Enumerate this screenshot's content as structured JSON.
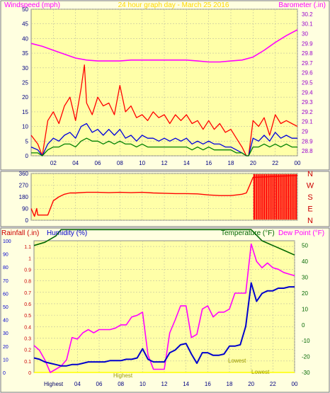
{
  "chart_data": [
    {
      "type": "line",
      "title": "24 hour graph day - March 25 2016",
      "ylabel_left": "Windspeed (mph)",
      "ylabel_right": "Barometer (.in)",
      "x_ticks": [
        "02",
        "04",
        "06",
        "08",
        "10",
        "12",
        "14",
        "16",
        "18",
        "20",
        "22",
        "00"
      ],
      "y_ticks_left": [
        "0",
        "5",
        "10",
        "15",
        "20",
        "25",
        "30",
        "35",
        "40",
        "45",
        "50"
      ],
      "y_ticks_right": [
        "28.8",
        "28.9",
        "29",
        "29.1",
        "29.2",
        "29.3",
        "29.4",
        "29.5",
        "29.6",
        "29.7",
        "29.8",
        "29.9",
        "30",
        "30.1",
        "30.2"
      ],
      "ylim_left": [
        0,
        50
      ],
      "ylim_right": [
        28.75,
        30.25
      ],
      "xlim_hours": [
        0,
        24
      ],
      "grid": true,
      "colors": {
        "gust": "#ff0000",
        "wind_speed": "#0000dd",
        "wind_avg": "#008000",
        "barometer": "#ff00ff"
      },
      "series": [
        {
          "role": "gust",
          "x": [
            0,
            0.6,
            1.0,
            1.5,
            2.0,
            2.5,
            3.0,
            3.5,
            4.0,
            4.5,
            4.8,
            5.0,
            5.5,
            6.0,
            6.5,
            7.0,
            7.5,
            8.0,
            8.5,
            9.0,
            9.5,
            10.0,
            10.5,
            11.0,
            11.5,
            12.0,
            12.5,
            13.0,
            13.5,
            14.0,
            14.5,
            15.0,
            15.5,
            16.0,
            16.5,
            17.0,
            17.5,
            18.0,
            18.5,
            19.0,
            19.4,
            19.6,
            20.0,
            20.5,
            21.0,
            21.5,
            22.0,
            22.5,
            23.0,
            23.5,
            24.0
          ],
          "y": [
            7,
            4,
            0,
            12,
            15,
            11,
            17,
            20,
            12,
            23,
            31,
            18,
            14,
            20,
            17,
            18,
            14,
            24,
            15,
            17,
            13,
            14,
            12,
            15,
            13,
            14,
            11,
            14,
            12,
            14,
            11,
            12,
            9,
            12,
            9,
            11,
            8,
            9,
            6,
            3,
            0,
            0,
            12,
            10,
            13,
            7,
            14,
            11,
            12,
            11,
            10
          ]
        },
        {
          "role": "wind_speed",
          "x": [
            0,
            0.6,
            1.0,
            1.5,
            2.0,
            2.5,
            3.0,
            3.5,
            4.0,
            4.5,
            5.0,
            5.5,
            6.0,
            6.5,
            7.0,
            7.5,
            8.0,
            8.5,
            9.0,
            9.5,
            10.0,
            10.5,
            11.0,
            11.5,
            12.0,
            12.5,
            13.0,
            13.5,
            14.0,
            14.5,
            15.0,
            15.5,
            16.0,
            16.5,
            17.0,
            17.5,
            18.0,
            18.5,
            19.0,
            19.4,
            19.6,
            20.0,
            20.5,
            21.0,
            21.5,
            22.0,
            22.5,
            23.0,
            23.5,
            24.0
          ],
          "y": [
            3,
            2,
            0,
            4,
            6,
            5,
            7,
            8,
            6,
            10,
            11,
            8,
            9,
            7,
            9,
            7,
            9,
            6,
            7,
            5,
            7,
            6,
            6,
            5,
            6,
            5,
            6,
            5,
            6,
            4,
            5,
            4,
            5,
            4,
            4,
            3,
            3,
            2,
            1,
            0,
            0,
            6,
            5,
            7,
            5,
            8,
            6,
            7,
            6,
            6
          ]
        },
        {
          "role": "wind_avg",
          "x": [
            0,
            0.6,
            1.0,
            1.5,
            2.0,
            2.5,
            3.0,
            3.5,
            4.0,
            4.5,
            5.0,
            5.5,
            6.0,
            6.5,
            7.0,
            7.5,
            8.0,
            8.5,
            9.0,
            9.5,
            10.0,
            10.5,
            11.0,
            11.5,
            12.0,
            12.5,
            13.0,
            13.5,
            14.0,
            14.5,
            15.0,
            15.5,
            16.0,
            16.5,
            17.0,
            17.5,
            18.0,
            18.5,
            19.0,
            19.4,
            19.6,
            20.0,
            20.5,
            21.0,
            21.5,
            22.0,
            22.5,
            23.0,
            23.5,
            24.0
          ],
          "y": [
            1,
            1,
            0,
            2,
            3,
            3,
            4,
            4,
            3,
            5,
            6,
            5,
            5,
            4,
            5,
            4,
            5,
            4,
            4,
            3,
            4,
            3,
            3,
            3,
            3,
            3,
            3,
            3,
            3,
            2,
            3,
            2,
            3,
            2,
            2,
            2,
            2,
            1,
            1,
            0,
            0,
            3,
            3,
            4,
            3,
            4,
            3,
            4,
            3,
            3
          ]
        },
        {
          "role": "barometer",
          "x": [
            0,
            1,
            2,
            3,
            4,
            5,
            6,
            7,
            8,
            9,
            10,
            11,
            12,
            13,
            14,
            15,
            16,
            17,
            18,
            19,
            20,
            21,
            22,
            23,
            24
          ],
          "y": [
            29.9,
            29.87,
            29.83,
            29.79,
            29.75,
            29.73,
            29.72,
            29.72,
            29.72,
            29.73,
            29.73,
            29.73,
            29.73,
            29.73,
            29.73,
            29.72,
            29.71,
            29.71,
            29.72,
            29.73,
            29.76,
            29.83,
            29.91,
            29.98,
            30.04
          ]
        }
      ]
    },
    {
      "type": "line",
      "ylabel_right": "N W S E N",
      "right_labels": [
        "N",
        "W",
        "S",
        "E",
        "N"
      ],
      "y_ticks_left": [
        "0",
        "90",
        "180",
        "270",
        "360"
      ],
      "ylim": [
        0,
        360
      ],
      "xlim_hours": [
        0,
        24
      ],
      "grid": true,
      "colors": {
        "direction": "#ff0000"
      },
      "series": [
        {
          "role": "wind_direction",
          "x": [
            0,
            0.3,
            0.5,
            0.6,
            1.5,
            2.0,
            2.5,
            3.0,
            3.5,
            4.0,
            5.0,
            6.0,
            7.0,
            8.0,
            9.0,
            10.0,
            11.0,
            12.0,
            13.0,
            14.0,
            15.0,
            16.0,
            17.0,
            18.0,
            18.5,
            19.0,
            19.4,
            19.6,
            20.0,
            24.0
          ],
          "y": [
            90,
            30,
            90,
            40,
            40,
            150,
            180,
            200,
            210,
            210,
            215,
            215,
            212,
            215,
            212,
            215,
            210,
            208,
            205,
            205,
            203,
            195,
            190,
            190,
            195,
            200,
            210,
            250,
            330,
            345
          ]
        }
      ]
    },
    {
      "type": "line",
      "ylabel_left_1": "Rainfall (.in)",
      "ylabel_left_2": "Humidity (%)",
      "ylabel_right_1": "Temperature (°F)",
      "ylabel_right_2": "Dew Point (°F)",
      "y_ticks_rain": [
        "0",
        "0.1",
        "0.2",
        "0.3",
        "0.4",
        "0.5",
        "0.6",
        "0.7",
        "0.8",
        "0.9",
        "1",
        "1.1"
      ],
      "y_ticks_humidity": [
        "0",
        "10",
        "20",
        "30",
        "40",
        "50",
        "60",
        "70",
        "80",
        "90",
        "100"
      ],
      "y_ticks_temp": [
        "-30",
        "-20",
        "-10",
        "0",
        "10",
        "20",
        "30",
        "40",
        "50"
      ],
      "x_ticks": [
        "04",
        "06",
        "08",
        "10",
        "12",
        "14",
        "16",
        "18",
        "20",
        "22",
        "00"
      ],
      "ylim_humidity": [
        0,
        100
      ],
      "ylim_temp": [
        -30,
        53
      ],
      "xlim_hours": [
        0,
        24
      ],
      "grid": true,
      "annotations": [
        "Highest",
        "Highest",
        "Lowest",
        "Lowest"
      ],
      "colors": {
        "temperature": "#006600",
        "dew_point": "#ff00ff",
        "humidity": "#0000cc",
        "rain": "#ffff00"
      },
      "series": [
        {
          "role": "temperature",
          "x": [
            0,
            1,
            2,
            2.5,
            20,
            21,
            22,
            23,
            24
          ],
          "y": [
            50,
            52,
            56,
            60,
            60,
            53,
            50,
            47,
            44
          ]
        },
        {
          "role": "dew_point",
          "x": [
            0,
            0.5,
            1.0,
            1.5,
            2.0,
            2.5,
            3.0,
            3.5,
            4.0,
            4.5,
            5.0,
            5.5,
            6.0,
            6.5,
            7.0,
            7.5,
            8.0,
            8.5,
            9.0,
            9.5,
            10.0,
            10.5,
            11.0,
            11.5,
            12.0,
            12.5,
            13.0,
            13.5,
            14.0,
            14.5,
            15.0,
            15.5,
            16.0,
            16.5,
            17.0,
            17.5,
            18.0,
            18.5,
            19.0,
            19.5,
            20.0,
            20.5,
            21.0,
            21.5,
            22.0,
            22.5,
            23.0,
            23.5,
            24.0
          ],
          "y": [
            -13,
            -16,
            -22,
            -30,
            -28,
            -26,
            -22,
            -8,
            -9,
            -5,
            -3,
            -5,
            -3,
            -3,
            -3,
            -2,
            0,
            0,
            5,
            6,
            8,
            -19,
            -28,
            -28,
            -28,
            -5,
            3,
            12,
            12,
            -8,
            -6,
            10,
            12,
            5,
            8,
            8,
            10,
            20,
            20,
            20,
            51,
            40,
            36,
            39,
            36,
            35,
            33,
            32,
            31
          ]
        },
        {
          "role": "humidity",
          "x": [
            0,
            0.5,
            1.0,
            1.5,
            2.0,
            2.5,
            3.0,
            3.5,
            4.0,
            4.5,
            5.0,
            5.5,
            6.0,
            6.5,
            7.0,
            7.5,
            8.0,
            8.5,
            9.0,
            9.5,
            10.0,
            10.5,
            11.0,
            11.5,
            12.0,
            12.5,
            13.0,
            13.5,
            14.0,
            14.5,
            15.0,
            15.5,
            16.0,
            16.5,
            17.0,
            17.5,
            18.0,
            18.5,
            19.0,
            19.5,
            20.0,
            20.5,
            21.0,
            21.5,
            22.0,
            22.5,
            23.0,
            23.5,
            24.0
          ],
          "y": [
            11,
            10,
            8,
            7,
            6,
            5,
            5,
            6,
            6,
            7,
            8,
            8,
            8,
            8,
            9,
            9,
            9,
            10,
            10,
            11,
            18,
            10,
            8,
            8,
            8,
            15,
            17,
            21,
            22,
            14,
            7,
            15,
            15,
            13,
            13,
            14,
            20,
            20,
            21,
            35,
            68,
            54,
            60,
            62,
            62,
            64,
            64,
            65,
            65
          ]
        }
      ]
    }
  ]
}
